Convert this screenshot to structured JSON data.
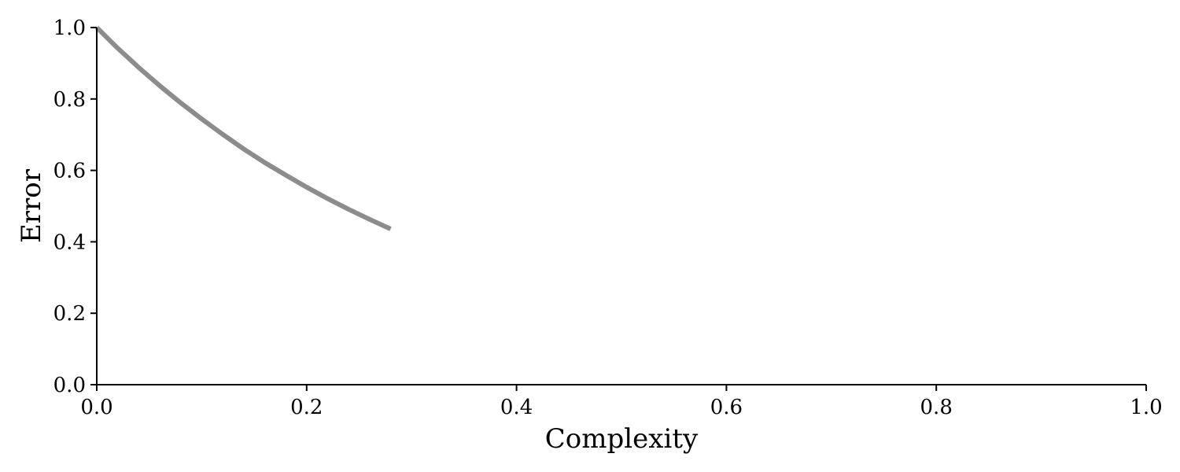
{
  "chart_data": {
    "type": "line",
    "xlabel": "Complexity",
    "ylabel": "Error",
    "xlim": [
      0.0,
      1.0
    ],
    "ylim": [
      0.0,
      1.0
    ],
    "x_ticks": [
      "0.0",
      "0.2",
      "0.4",
      "0.6",
      "0.8",
      "1.0"
    ],
    "y_ticks": [
      "0.0",
      "0.2",
      "0.4",
      "0.6",
      "0.8",
      "1.0"
    ],
    "grid": false,
    "series": [
      {
        "color": "#8c8c8c",
        "x": [
          0.0,
          0.02,
          0.04,
          0.06,
          0.08,
          0.1,
          0.12,
          0.14,
          0.16,
          0.18,
          0.2,
          0.22,
          0.24,
          0.26,
          0.28
        ],
        "y": [
          1.0,
          0.942,
          0.888,
          0.837,
          0.789,
          0.744,
          0.701,
          0.66,
          0.622,
          0.587,
          0.553,
          0.521,
          0.491,
          0.463,
          0.436
        ]
      }
    ]
  }
}
